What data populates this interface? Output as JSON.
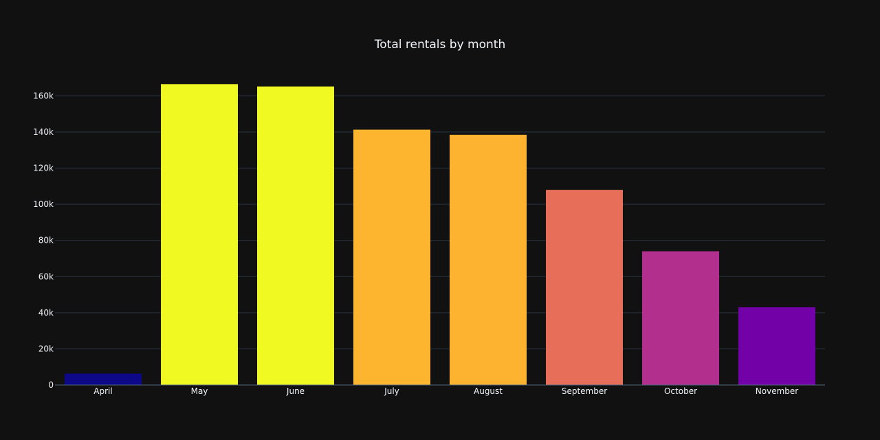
{
  "chart_data": {
    "type": "bar",
    "title": "Total rentals by month",
    "xlabel": "",
    "ylabel": "",
    "categories": [
      "April",
      "May",
      "June",
      "July",
      "August",
      "September",
      "October",
      "November"
    ],
    "values": [
      6300,
      166500,
      165200,
      141300,
      138500,
      108000,
      74000,
      43000
    ],
    "colors": [
      "#0d0887",
      "#f0f921",
      "#f0f921",
      "#fdb42f",
      "#fdb32f",
      "#e76f5a",
      "#b32f8d",
      "#7201a8"
    ],
    "ylim": [
      0,
      175000
    ],
    "yticks": [
      0,
      20000,
      40000,
      60000,
      80000,
      100000,
      120000,
      140000,
      160000
    ],
    "ytick_labels": [
      "0",
      "20k",
      "40k",
      "60k",
      "80k",
      "100k",
      "120k",
      "140k",
      "160k"
    ],
    "grid": true,
    "legend": "none"
  },
  "theme": {
    "background": "#111111",
    "grid_color": "#283442",
    "text_color": "#f2f5fa"
  }
}
